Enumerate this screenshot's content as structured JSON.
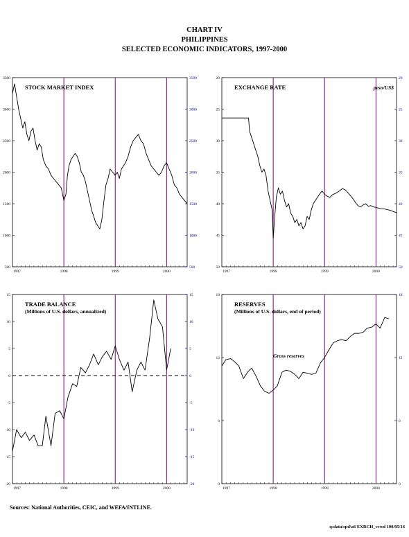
{
  "header": {
    "line1": "CHART IV",
    "line2": "PHILIPPINES",
    "line3": "SELECTED ECONOMIC INDICATORS, 1997-2000"
  },
  "footer": {
    "sources": "Sources: National Authorities, CEIC, and WEFA/INTLINE.",
    "code": "q:data\\spd\\a6 EXRCH_vcwd 100/05/16"
  },
  "colors": {
    "vline": "#800080",
    "line": "#000000",
    "axis_left": "#000000",
    "axis_right": "#000080"
  },
  "chart_data": [
    {
      "type": "line",
      "title": "STOCK MARKET INDEX",
      "subtitle": "",
      "unit": "",
      "ylim": [
        500,
        3500
      ],
      "yticks": [
        500,
        1000,
        1500,
        2000,
        2500,
        3000,
        3500
      ],
      "ytick_labels": [
        "500",
        "1000",
        "1500",
        "2000",
        "2500",
        "3000",
        "3500"
      ],
      "xlim": [
        1997.0,
        2000.4
      ],
      "xtick_labels": [
        "1997",
        "1998",
        "1999",
        "2000"
      ],
      "vlines": [
        1998.0,
        1999.0,
        2000.0
      ],
      "series": [
        {
          "values": [
            [
              1997.0,
              3250
            ],
            [
              1997.04,
              3400
            ],
            [
              1997.08,
              3200
            ],
            [
              1997.12,
              3000
            ],
            [
              1997.16,
              2850
            ],
            [
              1997.2,
              2700
            ],
            [
              1997.24,
              2800
            ],
            [
              1997.28,
              2600
            ],
            [
              1997.32,
              2500
            ],
            [
              1997.36,
              2650
            ],
            [
              1997.4,
              2700
            ],
            [
              1997.44,
              2500
            ],
            [
              1997.48,
              2350
            ],
            [
              1997.52,
              2450
            ],
            [
              1997.56,
              2400
            ],
            [
              1997.6,
              2200
            ],
            [
              1997.65,
              2100
            ],
            [
              1997.7,
              2050
            ],
            [
              1997.75,
              1950
            ],
            [
              1997.8,
              1900
            ],
            [
              1997.85,
              1850
            ],
            [
              1997.9,
              1800
            ],
            [
              1997.95,
              1750
            ],
            [
              1998.0,
              1550
            ],
            [
              1998.04,
              1650
            ],
            [
              1998.07,
              1950
            ],
            [
              1998.1,
              2100
            ],
            [
              1998.14,
              2200
            ],
            [
              1998.18,
              2250
            ],
            [
              1998.22,
              2300
            ],
            [
              1998.26,
              2250
            ],
            [
              1998.3,
              2150
            ],
            [
              1998.34,
              2000
            ],
            [
              1998.38,
              1950
            ],
            [
              1998.42,
              1850
            ],
            [
              1998.46,
              1700
            ],
            [
              1998.5,
              1550
            ],
            [
              1998.54,
              1400
            ],
            [
              1998.58,
              1300
            ],
            [
              1998.62,
              1200
            ],
            [
              1998.66,
              1150
            ],
            [
              1998.7,
              1100
            ],
            [
              1998.74,
              1250
            ],
            [
              1998.78,
              1550
            ],
            [
              1998.82,
              1800
            ],
            [
              1998.86,
              1900
            ],
            [
              1998.9,
              2050
            ],
            [
              1998.95,
              2000
            ],
            [
              1999.0,
              1950
            ],
            [
              1999.04,
              2000
            ],
            [
              1999.08,
              1900
            ],
            [
              1999.12,
              2050
            ],
            [
              1999.16,
              2100
            ],
            [
              1999.2,
              2150
            ],
            [
              1999.25,
              2250
            ],
            [
              1999.3,
              2400
            ],
            [
              1999.35,
              2500
            ],
            [
              1999.4,
              2550
            ],
            [
              1999.45,
              2600
            ],
            [
              1999.5,
              2500
            ],
            [
              1999.55,
              2450
            ],
            [
              1999.6,
              2300
            ],
            [
              1999.65,
              2200
            ],
            [
              1999.7,
              2100
            ],
            [
              1999.75,
              2050
            ],
            [
              1999.8,
              2000
            ],
            [
              1999.85,
              1950
            ],
            [
              1999.9,
              2000
            ],
            [
              1999.95,
              2100
            ],
            [
              2000.0,
              2150
            ],
            [
              2000.05,
              2050
            ],
            [
              2000.1,
              1950
            ],
            [
              2000.15,
              1800
            ],
            [
              2000.2,
              1750
            ],
            [
              2000.25,
              1650
            ],
            [
              2000.3,
              1600
            ],
            [
              2000.35,
              1550
            ],
            [
              2000.4,
              1500
            ]
          ]
        }
      ]
    },
    {
      "type": "line",
      "title": "EXCHANGE RATE",
      "subtitle": "",
      "unit": "peso/US$",
      "ylim": [
        20,
        50
      ],
      "inverted": true,
      "yticks": [
        20,
        25,
        30,
        35,
        40,
        45,
        50
      ],
      "ytick_labels": [
        "20",
        "25",
        "30",
        "35",
        "40",
        "45",
        "50"
      ],
      "xlim": [
        1997.0,
        2000.4
      ],
      "xtick_labels": [
        "1997",
        "1998",
        "1999",
        "2000"
      ],
      "vlines": [
        1998.0,
        1999.0,
        2000.0
      ],
      "series": [
        {
          "values": [
            [
              1997.0,
              26.4
            ],
            [
              1997.52,
              26.4
            ],
            [
              1997.54,
              28.5
            ],
            [
              1997.58,
              29.5
            ],
            [
              1997.62,
              30.5
            ],
            [
              1997.66,
              31.5
            ],
            [
              1997.7,
              32.5
            ],
            [
              1997.74,
              34.0
            ],
            [
              1997.78,
              35.0
            ],
            [
              1997.82,
              34.5
            ],
            [
              1997.86,
              35.5
            ],
            [
              1997.9,
              38.0
            ],
            [
              1997.94,
              39.5
            ],
            [
              1997.98,
              41.0
            ],
            [
              1998.0,
              45.5
            ],
            [
              1998.03,
              42.0
            ],
            [
              1998.06,
              39.0
            ],
            [
              1998.1,
              37.5
            ],
            [
              1998.14,
              38.5
            ],
            [
              1998.18,
              38.0
            ],
            [
              1998.22,
              39.5
            ],
            [
              1998.26,
              40.5
            ],
            [
              1998.3,
              40.0
            ],
            [
              1998.34,
              41.5
            ],
            [
              1998.38,
              42.0
            ],
            [
              1998.42,
              43.0
            ],
            [
              1998.46,
              42.5
            ],
            [
              1998.5,
              43.5
            ],
            [
              1998.54,
              43.0
            ],
            [
              1998.58,
              44.0
            ],
            [
              1998.62,
              43.5
            ],
            [
              1998.66,
              42.0
            ],
            [
              1998.7,
              42.5
            ],
            [
              1998.74,
              41.0
            ],
            [
              1998.78,
              40.0
            ],
            [
              1998.82,
              39.5
            ],
            [
              1998.86,
              39.0
            ],
            [
              1998.9,
              38.5
            ],
            [
              1998.95,
              38.0
            ],
            [
              1999.0,
              38.5
            ],
            [
              1999.05,
              38.8
            ],
            [
              1999.1,
              39.0
            ],
            [
              1999.15,
              38.6
            ],
            [
              1999.2,
              38.4
            ],
            [
              1999.25,
              38.2
            ],
            [
              1999.3,
              37.9
            ],
            [
              1999.35,
              37.6
            ],
            [
              1999.4,
              37.8
            ],
            [
              1999.45,
              38.2
            ],
            [
              1999.5,
              38.7
            ],
            [
              1999.55,
              39.2
            ],
            [
              1999.6,
              39.8
            ],
            [
              1999.65,
              40.3
            ],
            [
              1999.7,
              40.5
            ],
            [
              1999.75,
              40.2
            ],
            [
              1999.8,
              40.0
            ],
            [
              1999.85,
              40.4
            ],
            [
              1999.9,
              40.3
            ],
            [
              1999.95,
              40.5
            ],
            [
              2000.0,
              40.6
            ],
            [
              2000.05,
              40.7
            ],
            [
              2000.1,
              40.8
            ],
            [
              2000.15,
              40.8
            ],
            [
              2000.2,
              40.9
            ],
            [
              2000.25,
              41.0
            ],
            [
              2000.3,
              41.1
            ],
            [
              2000.35,
              41.3
            ],
            [
              2000.4,
              41.4
            ]
          ]
        }
      ]
    },
    {
      "type": "line",
      "title": "TRADE BALANCE",
      "subtitle": "(Millions of U.S. dollars, annualized)",
      "unit": "",
      "ylim": [
        -20,
        15
      ],
      "yticks": [
        -20,
        -15,
        -10,
        -5,
        0,
        5,
        10,
        15
      ],
      "ytick_labels": [
        "-20",
        "-15",
        "-10",
        "-5",
        "0",
        "5",
        "10",
        "15"
      ],
      "xlim": [
        1997.0,
        2000.4
      ],
      "xtick_labels": [
        "1997",
        "1998",
        "1999",
        "2000"
      ],
      "vlines": [
        1998.0,
        1999.0,
        2000.0
      ],
      "zero_line": 0,
      "series": [
        {
          "values": [
            [
              1997.0,
              -14.0
            ],
            [
              1997.08,
              -10.0
            ],
            [
              1997.17,
              -11.5
            ],
            [
              1997.25,
              -10.5
            ],
            [
              1997.33,
              -12.0
            ],
            [
              1997.42,
              -11.0
            ],
            [
              1997.5,
              -13.0
            ],
            [
              1997.58,
              -13.0
            ],
            [
              1997.65,
              -7.5
            ],
            [
              1997.75,
              -13.0
            ],
            [
              1997.83,
              -7.0
            ],
            [
              1997.92,
              -6.5
            ],
            [
              1998.0,
              -8.0
            ],
            [
              1998.08,
              -4.0
            ],
            [
              1998.17,
              -1.5
            ],
            [
              1998.25,
              -2.0
            ],
            [
              1998.33,
              1.5
            ],
            [
              1998.42,
              0.5
            ],
            [
              1998.5,
              2.0
            ],
            [
              1998.58,
              4.0
            ],
            [
              1998.67,
              2.0
            ],
            [
              1998.75,
              3.5
            ],
            [
              1998.83,
              4.5
            ],
            [
              1998.92,
              3.0
            ],
            [
              1999.0,
              5.5
            ],
            [
              1999.08,
              3.0
            ],
            [
              1999.17,
              1.0
            ],
            [
              1999.25,
              2.5
            ],
            [
              1999.33,
              -3.0
            ],
            [
              1999.42,
              1.0
            ],
            [
              1999.5,
              2.5
            ],
            [
              1999.58,
              1.0
            ],
            [
              1999.67,
              7.0
            ],
            [
              1999.75,
              14.0
            ],
            [
              1999.83,
              10.5
            ],
            [
              1999.92,
              9.0
            ],
            [
              2000.0,
              1.0
            ],
            [
              2000.08,
              5.0
            ]
          ]
        }
      ]
    },
    {
      "type": "line",
      "title": "RESERVES",
      "subtitle": "(Millions of U.S. dollars, end of period)",
      "unit": "",
      "ylim": [
        0,
        18
      ],
      "yticks": [
        0,
        6,
        12,
        18
      ],
      "ytick_labels": [
        "0",
        "6",
        "12",
        "18"
      ],
      "xlim": [
        1997.0,
        2000.4
      ],
      "xtick_labels": [
        "1997",
        "1998",
        "1999",
        "2000"
      ],
      "vlines": [
        1998.0,
        1999.0,
        2000.0
      ],
      "annotation": "Gross reserves",
      "series": [
        {
          "values": [
            [
              1997.0,
              11.2
            ],
            [
              1997.08,
              11.8
            ],
            [
              1997.17,
              11.9
            ],
            [
              1997.25,
              11.6
            ],
            [
              1997.33,
              11.2
            ],
            [
              1997.42,
              10.0
            ],
            [
              1997.5,
              10.6
            ],
            [
              1997.58,
              11.0
            ],
            [
              1997.67,
              10.2
            ],
            [
              1997.75,
              9.3
            ],
            [
              1997.83,
              8.8
            ],
            [
              1997.92,
              8.6
            ],
            [
              1998.0,
              8.9
            ],
            [
              1998.08,
              9.3
            ],
            [
              1998.17,
              10.6
            ],
            [
              1998.25,
              10.8
            ],
            [
              1998.33,
              10.7
            ],
            [
              1998.42,
              10.4
            ],
            [
              1998.5,
              10.0
            ],
            [
              1998.58,
              10.6
            ],
            [
              1998.67,
              10.5
            ],
            [
              1998.75,
              10.4
            ],
            [
              1998.83,
              10.5
            ],
            [
              1998.92,
              11.5
            ],
            [
              1999.0,
              12.0
            ],
            [
              1999.08,
              12.7
            ],
            [
              1999.17,
              13.4
            ],
            [
              1999.25,
              13.6
            ],
            [
              1999.33,
              13.7
            ],
            [
              1999.42,
              13.6
            ],
            [
              1999.5,
              14.0
            ],
            [
              1999.58,
              14.3
            ],
            [
              1999.67,
              14.3
            ],
            [
              1999.75,
              14.4
            ],
            [
              1999.83,
              14.8
            ],
            [
              1999.92,
              14.9
            ],
            [
              2000.0,
              15.2
            ],
            [
              2000.08,
              14.8
            ],
            [
              2000.17,
              15.8
            ],
            [
              2000.25,
              15.7
            ]
          ]
        }
      ]
    }
  ]
}
